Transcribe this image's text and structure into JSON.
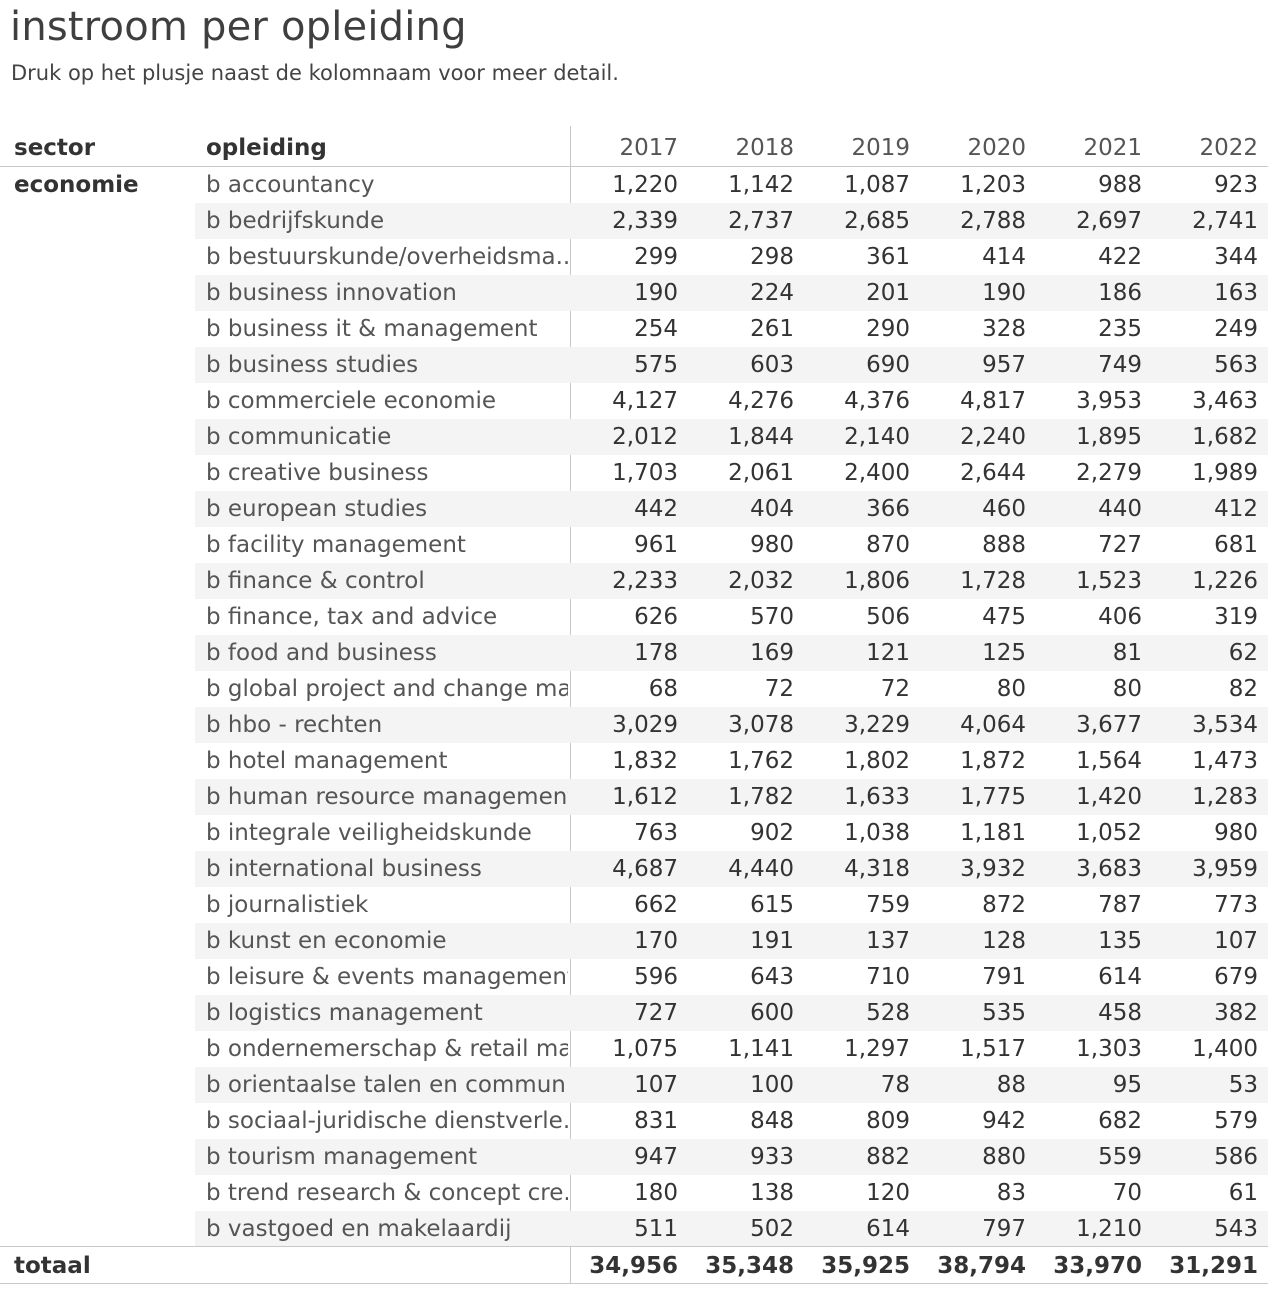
{
  "title": "instroom per opleiding",
  "subtitle": "Druk op het plusje naast de kolomnaam voor meer detail.",
  "table": {
    "headers": {
      "sector": "sector",
      "opleiding": "opleiding",
      "years": [
        "2017",
        "2018",
        "2019",
        "2020",
        "2021",
        "2022"
      ]
    },
    "sector": "economie",
    "rows": [
      {
        "name": "b accountancy",
        "values": [
          "1,220",
          "1,142",
          "1,087",
          "1,203",
          "988",
          "923"
        ]
      },
      {
        "name": "b bedrijfskunde",
        "values": [
          "2,339",
          "2,737",
          "2,685",
          "2,788",
          "2,697",
          "2,741"
        ]
      },
      {
        "name": "b bestuurskunde/overheidsma..",
        "values": [
          "299",
          "298",
          "361",
          "414",
          "422",
          "344"
        ]
      },
      {
        "name": "b business innovation",
        "values": [
          "190",
          "224",
          "201",
          "190",
          "186",
          "163"
        ]
      },
      {
        "name": "b business it & management",
        "values": [
          "254",
          "261",
          "290",
          "328",
          "235",
          "249"
        ]
      },
      {
        "name": "b business studies",
        "values": [
          "575",
          "603",
          "690",
          "957",
          "749",
          "563"
        ]
      },
      {
        "name": "b commerciele economie",
        "values": [
          "4,127",
          "4,276",
          "4,376",
          "4,817",
          "3,953",
          "3,463"
        ]
      },
      {
        "name": "b communicatie",
        "values": [
          "2,012",
          "1,844",
          "2,140",
          "2,240",
          "1,895",
          "1,682"
        ]
      },
      {
        "name": "b creative business",
        "values": [
          "1,703",
          "2,061",
          "2,400",
          "2,644",
          "2,279",
          "1,989"
        ]
      },
      {
        "name": "b european studies",
        "values": [
          "442",
          "404",
          "366",
          "460",
          "440",
          "412"
        ]
      },
      {
        "name": "b facility management",
        "values": [
          "961",
          "980",
          "870",
          "888",
          "727",
          "681"
        ]
      },
      {
        "name": "b finance & control",
        "values": [
          "2,233",
          "2,032",
          "1,806",
          "1,728",
          "1,523",
          "1,226"
        ]
      },
      {
        "name": "b finance, tax and advice",
        "values": [
          "626",
          "570",
          "506",
          "475",
          "406",
          "319"
        ]
      },
      {
        "name": "b food and business",
        "values": [
          "178",
          "169",
          "121",
          "125",
          "81",
          "62"
        ]
      },
      {
        "name": "b global project and change ma..",
        "values": [
          "68",
          "72",
          "72",
          "80",
          "80",
          "82"
        ]
      },
      {
        "name": "b hbo - rechten",
        "values": [
          "3,029",
          "3,078",
          "3,229",
          "4,064",
          "3,677",
          "3,534"
        ]
      },
      {
        "name": "b hotel management",
        "values": [
          "1,832",
          "1,762",
          "1,802",
          "1,872",
          "1,564",
          "1,473"
        ]
      },
      {
        "name": "b human resource management",
        "values": [
          "1,612",
          "1,782",
          "1,633",
          "1,775",
          "1,420",
          "1,283"
        ]
      },
      {
        "name": "b integrale veiligheidskunde",
        "values": [
          "763",
          "902",
          "1,038",
          "1,181",
          "1,052",
          "980"
        ]
      },
      {
        "name": "b international business",
        "values": [
          "4,687",
          "4,440",
          "4,318",
          "3,932",
          "3,683",
          "3,959"
        ]
      },
      {
        "name": "b journalistiek",
        "values": [
          "662",
          "615",
          "759",
          "872",
          "787",
          "773"
        ]
      },
      {
        "name": "b kunst en economie",
        "values": [
          "170",
          "191",
          "137",
          "128",
          "135",
          "107"
        ]
      },
      {
        "name": "b leisure & events management",
        "values": [
          "596",
          "643",
          "710",
          "791",
          "614",
          "679"
        ]
      },
      {
        "name": "b logistics management",
        "values": [
          "727",
          "600",
          "528",
          "535",
          "458",
          "382"
        ]
      },
      {
        "name": "b ondernemerschap & retail ma..",
        "values": [
          "1,075",
          "1,141",
          "1,297",
          "1,517",
          "1,303",
          "1,400"
        ]
      },
      {
        "name": "b orientaalse talen en commun..",
        "values": [
          "107",
          "100",
          "78",
          "88",
          "95",
          "53"
        ]
      },
      {
        "name": "b sociaal-juridische dienstverle..",
        "values": [
          "831",
          "848",
          "809",
          "942",
          "682",
          "579"
        ]
      },
      {
        "name": "b tourism management",
        "values": [
          "947",
          "933",
          "882",
          "880",
          "559",
          "586"
        ]
      },
      {
        "name": "b trend research & concept cre..",
        "values": [
          "180",
          "138",
          "120",
          "83",
          "70",
          "61"
        ]
      },
      {
        "name": "b vastgoed en makelaardij",
        "values": [
          "511",
          "502",
          "614",
          "797",
          "1,210",
          "543"
        ]
      }
    ],
    "total": {
      "label": "totaal",
      "values": [
        "34,956",
        "35,348",
        "35,925",
        "38,794",
        "33,970",
        "31,291"
      ]
    }
  }
}
